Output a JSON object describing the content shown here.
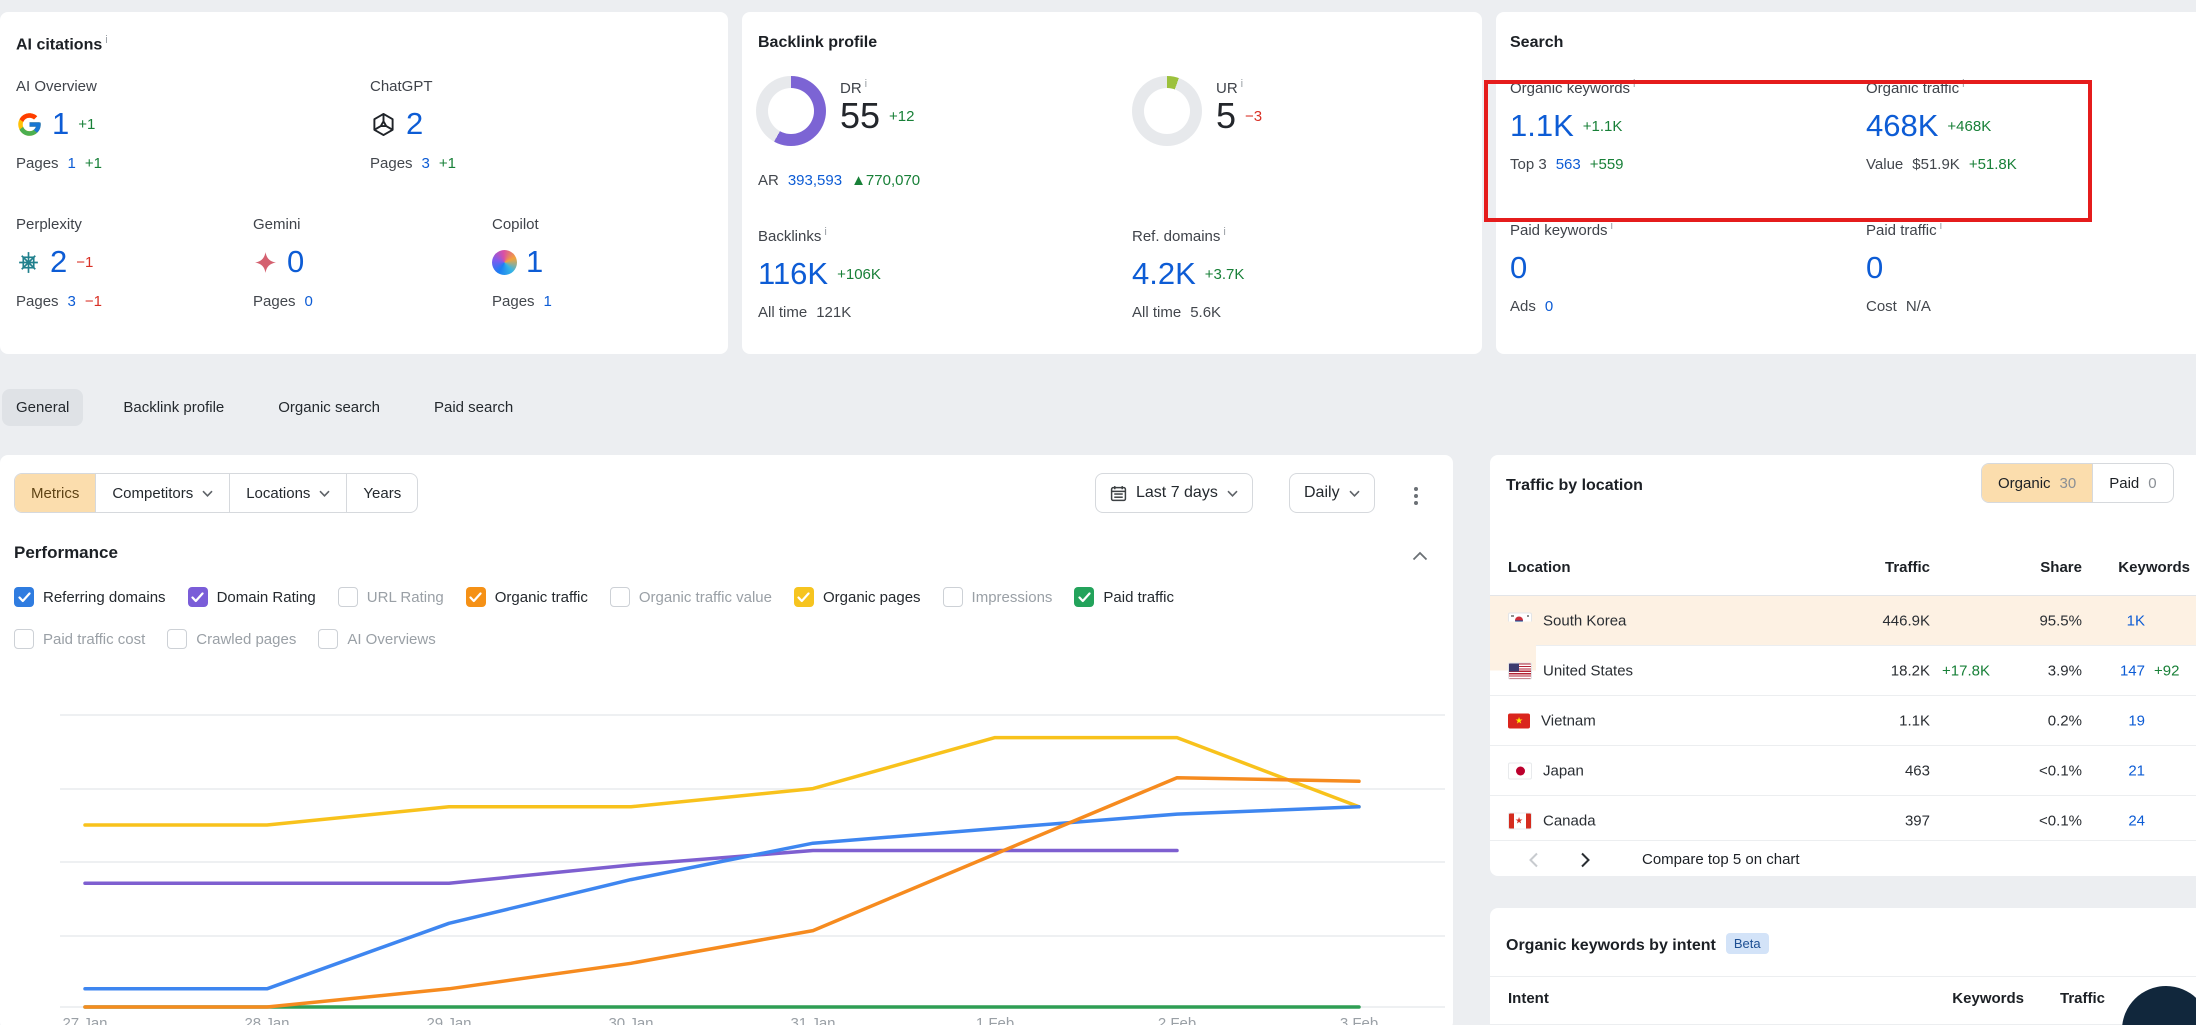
{
  "misc": {
    "info": "i"
  },
  "colors": {
    "accent_blue": "#0d5cd5",
    "positive_green": "#188038",
    "negative_red": "#d93025",
    "highlight_red_box": "#e51c1c",
    "active_filter_bg": "#fbddad",
    "row_highlight": "#fdf1e3"
  },
  "ai_citations": {
    "title": "AI citations",
    "cards": [
      {
        "name": "AI Overview",
        "value": "1",
        "delta": "+1",
        "pages_label": "Pages",
        "pages": "1",
        "pages_delta": "+1"
      },
      {
        "name": "ChatGPT",
        "value": "2",
        "delta": "",
        "pages_label": "Pages",
        "pages": "3",
        "pages_delta": "+1"
      },
      {
        "name": "Perplexity",
        "value": "2",
        "delta": "−1",
        "pages_label": "Pages",
        "pages": "3",
        "pages_delta": "−1"
      },
      {
        "name": "Gemini",
        "value": "0",
        "delta": "",
        "pages_label": "Pages",
        "pages": "0",
        "pages_delta": ""
      },
      {
        "name": "Copilot",
        "value": "1",
        "delta": "",
        "pages_label": "Pages",
        "pages": "1",
        "pages_delta": ""
      }
    ]
  },
  "backlink_profile": {
    "title": "Backlink profile",
    "dr": {
      "label": "DR",
      "value": "55",
      "delta": "+12",
      "percent": 58,
      "sub_k": "AR",
      "sub_v": "393,593",
      "sub_d": "▲770,070"
    },
    "ur": {
      "label": "UR",
      "value": "5",
      "delta": "−3",
      "percent": 5
    },
    "backlinks": {
      "label": "Backlinks",
      "value": "116K",
      "delta": "+106K",
      "sub_k": "All time",
      "sub_v": "121K"
    },
    "ref_domains": {
      "label": "Ref. domains",
      "value": "4.2K",
      "delta": "+3.7K",
      "sub_k": "All time",
      "sub_v": "5.6K"
    }
  },
  "search": {
    "title": "Search",
    "organic_keywords": {
      "label": "Organic keywords",
      "value": "1.1K",
      "delta": "+1.1K",
      "sub_k": "Top 3",
      "sub_v": "563",
      "sub_d": "+559"
    },
    "organic_traffic": {
      "label": "Organic traffic",
      "value": "468K",
      "delta": "+468K",
      "sub_k": "Value",
      "sub_v": "$51.9K",
      "sub_d": "+51.8K"
    },
    "paid_keywords": {
      "label": "Paid keywords",
      "value": "0",
      "sub_k": "Ads",
      "sub_v": "0"
    },
    "paid_traffic": {
      "label": "Paid traffic",
      "value": "0",
      "sub_k": "Cost",
      "sub_v": "N/A"
    }
  },
  "tabs": {
    "items": [
      "General",
      "Backlink profile",
      "Organic search",
      "Paid search"
    ],
    "active": "General"
  },
  "filters": {
    "metrics": "Metrics",
    "competitors": "Competitors",
    "locations": "Locations",
    "years": "Years",
    "date_range": "Last 7 days",
    "granularity": "Daily"
  },
  "performance": {
    "title": "Performance",
    "metrics": [
      {
        "label": "Referring domains",
        "checked": true,
        "color": "#2f7ce0"
      },
      {
        "label": "Domain Rating",
        "checked": true,
        "color": "#7a5dd8"
      },
      {
        "label": "URL Rating",
        "checked": false,
        "color": ""
      },
      {
        "label": "Organic traffic",
        "checked": true,
        "color": "#f59116"
      },
      {
        "label": "Organic traffic value",
        "checked": false,
        "color": ""
      },
      {
        "label": "Organic pages",
        "checked": true,
        "color": "#f6c41f"
      },
      {
        "label": "Impressions",
        "checked": false,
        "color": ""
      },
      {
        "label": "Paid traffic",
        "checked": true,
        "color": "#23a35b"
      },
      {
        "label": "Paid traffic cost",
        "checked": false,
        "color": ""
      },
      {
        "label": "Crawled pages",
        "checked": false,
        "color": ""
      },
      {
        "label": "AI Overviews",
        "checked": false,
        "color": ""
      }
    ]
  },
  "chart_data": {
    "type": "line",
    "x": [
      "27 Jan",
      "28 Jan",
      "29 Jan",
      "30 Jan",
      "31 Jan",
      "1 Feb",
      "2 Feb",
      "3 Feb"
    ],
    "series": [
      {
        "name": "Referring domains",
        "color": "#3e86f0",
        "values": [
          5,
          5,
          23,
          35,
          45,
          49,
          53,
          55
        ]
      },
      {
        "name": "Domain Rating",
        "color": "#7e5fd0",
        "values": [
          34,
          34,
          34,
          39,
          43,
          43,
          43,
          null
        ]
      },
      {
        "name": "Organic traffic",
        "color": "#f68b1f",
        "values": [
          0,
          0,
          5,
          12,
          21,
          42,
          63,
          62
        ]
      },
      {
        "name": "Organic pages",
        "color": "#f8c21c",
        "values": [
          50,
          50,
          55,
          55,
          60,
          74,
          74,
          55
        ]
      },
      {
        "name": "Paid traffic",
        "color": "#2f9e54",
        "values": [
          0,
          0,
          0,
          0,
          0,
          0,
          0,
          0
        ]
      }
    ],
    "ylim": [
      0,
      100
    ],
    "note": "multi-metric normalized chart; values are relative heights 0-100, no y-axis labels shown",
    "grid": true,
    "legend_position": "none"
  },
  "traffic_by_location": {
    "title": "Traffic by location",
    "toggle": {
      "organic": "Organic",
      "organic_count": "30",
      "paid": "Paid",
      "paid_count": "0"
    },
    "headers": {
      "location": "Location",
      "traffic": "Traffic",
      "share": "Share",
      "keywords": "Keywords"
    },
    "rows": [
      {
        "location": "South Korea",
        "traffic": "446.9K",
        "traffic_delta": "",
        "share": "95.5%",
        "keywords": "1K",
        "keywords_delta": ""
      },
      {
        "location": "United States",
        "traffic": "18.2K",
        "traffic_delta": "+17.8K",
        "share": "3.9%",
        "keywords": "147",
        "keywords_delta": "+92"
      },
      {
        "location": "Vietnam",
        "traffic": "1.1K",
        "traffic_delta": "",
        "share": "0.2%",
        "keywords": "19",
        "keywords_delta": ""
      },
      {
        "location": "Japan",
        "traffic": "463",
        "traffic_delta": "",
        "share": "<0.1%",
        "keywords": "21",
        "keywords_delta": ""
      },
      {
        "location": "Canada",
        "traffic": "397",
        "traffic_delta": "",
        "share": "<0.1%",
        "keywords": "24",
        "keywords_delta": ""
      }
    ],
    "compare_label": "Compare top 5 on chart"
  },
  "keywords_by_intent": {
    "title": "Organic keywords by intent",
    "badge": "Beta",
    "headers": {
      "intent": "Intent",
      "keywords": "Keywords",
      "traffic": "Traffic"
    }
  }
}
